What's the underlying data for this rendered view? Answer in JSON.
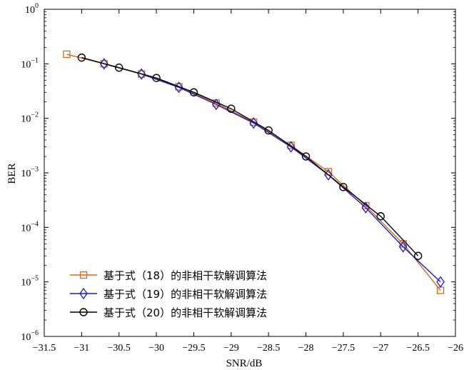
{
  "chart_data": {
    "type": "line",
    "xlabel": "SNR/dB",
    "ylabel": "BER",
    "xlim": [
      -31.5,
      -26
    ],
    "ylim": [
      1e-06,
      1
    ],
    "yscale": "log",
    "grid": false,
    "legend_position": "bottom-left",
    "x_ticks": [
      -31.5,
      -31,
      -30.5,
      -30,
      -29.5,
      -29,
      -28.5,
      -28,
      -27.5,
      -27,
      -26.5,
      -26
    ],
    "x_tick_labels": [
      "−31.5",
      "−31",
      "−30.5",
      "−30",
      "−29.5",
      "−29",
      "−28.5",
      "−28",
      "−27.5",
      "−27",
      "−26.5",
      "−26"
    ],
    "y_tick_exponents": [
      0,
      -1,
      -2,
      -3,
      -4,
      -5,
      -6
    ],
    "y_tick_base": "10",
    "series": [
      {
        "name": "基于式（18）的非相干软解调算法",
        "color": "#d2691e",
        "marker": "square",
        "x": [
          -31.2,
          -30.7,
          -30.2,
          -29.7,
          -29.2,
          -28.7,
          -28.2,
          -27.7,
          -27.2,
          -26.7,
          -26.2
        ],
        "y": [
          0.15,
          0.1,
          0.065,
          0.038,
          0.019,
          0.0085,
          0.0032,
          0.00105,
          0.00025,
          5e-05,
          7e-06
        ]
      },
      {
        "name": "基于式（19）的非相干软解调算法",
        "color": "#1a1acd",
        "marker": "diamond",
        "x": [
          -30.7,
          -30.2,
          -29.7,
          -29.2,
          -28.7,
          -28.2,
          -27.7,
          -27.2,
          -26.7,
          -26.2
        ],
        "y": [
          0.1,
          0.065,
          0.037,
          0.018,
          0.0082,
          0.003,
          0.00092,
          0.00023,
          4.4e-05,
          1e-05
        ]
      },
      {
        "name": "基于式（20）的非相干软解调算法",
        "color": "#000000",
        "marker": "circle",
        "x": [
          -31,
          -30.5,
          -30,
          -29.5,
          -29,
          -28.5,
          -28,
          -27.5,
          -27,
          -26.5
        ],
        "y": [
          0.13,
          0.085,
          0.055,
          0.03,
          0.015,
          0.006,
          0.002,
          0.00055,
          0.00016,
          3e-05
        ]
      }
    ]
  }
}
